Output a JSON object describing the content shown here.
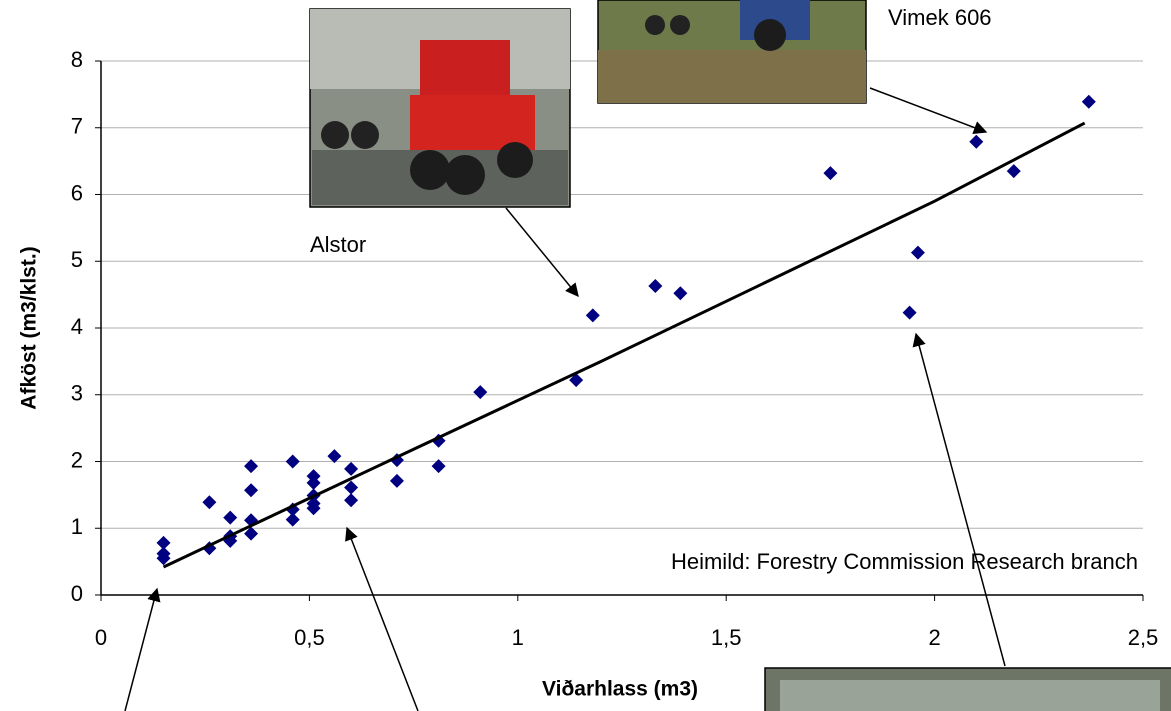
{
  "chart_data": {
    "type": "scatter",
    "x_label": "Viðarhlass (m3)",
    "y_label": "Afköst (m3/klst.)",
    "x": [
      0.15,
      0.15,
      0.15,
      0.26,
      0.26,
      0.31,
      0.31,
      0.31,
      0.36,
      0.36,
      0.36,
      0.36,
      0.46,
      0.46,
      0.46,
      0.51,
      0.51,
      0.51,
      0.51,
      0.51,
      0.56,
      0.6,
      0.6,
      0.6,
      0.71,
      0.71,
      0.81,
      0.81,
      0.91,
      1.14,
      1.18,
      1.33,
      1.39,
      1.75,
      1.94,
      1.96,
      2.1,
      2.19,
      2.37
    ],
    "values": [
      0.78,
      0.62,
      0.55,
      1.39,
      0.7,
      1.16,
      0.88,
      0.81,
      1.93,
      1.57,
      1.12,
      0.92,
      2.0,
      1.28,
      1.13,
      1.78,
      1.68,
      1.49,
      1.37,
      1.3,
      2.08,
      1.89,
      1.61,
      1.42,
      2.02,
      1.71,
      2.31,
      1.93,
      3.04,
      3.22,
      4.19,
      4.63,
      4.52,
      6.32,
      4.23,
      5.13,
      6.79,
      6.35,
      7.39
    ],
    "color": "#000080",
    "trendline": {
      "x": [
        0.15,
        0.5,
        0.8,
        1.2,
        1.6,
        2.0,
        2.36
      ],
      "values": [
        0.42,
        1.45,
        2.33,
        3.5,
        4.7,
        5.9,
        7.07
      ],
      "color": "#000000"
    },
    "xlim": [
      0,
      2.5
    ],
    "ylim": [
      0,
      8
    ],
    "xticks": [
      0,
      {
        "value": 0.5,
        "label": "0,5"
      },
      1,
      {
        "value": 1.5,
        "label": "1,5"
      },
      2,
      {
        "value": 2.5,
        "label": "2,5"
      }
    ],
    "yticks": [
      0,
      1,
      2,
      3,
      4,
      5,
      6,
      7,
      8
    ],
    "grid": true,
    "annotations": [
      "Alstor",
      "Vimek 606",
      "Heimild: Forestry Commission Research branch"
    ]
  }
}
